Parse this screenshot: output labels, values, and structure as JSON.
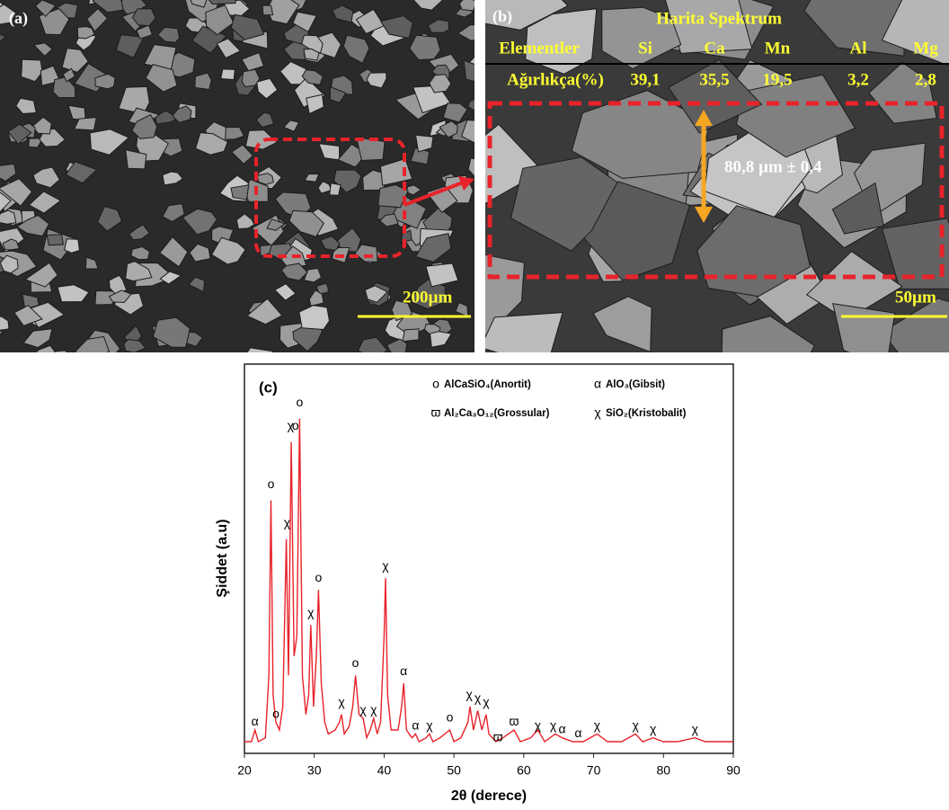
{
  "panels": {
    "a": {
      "label": "(a)",
      "scale_bar": "200µm"
    },
    "b": {
      "label": "(b)",
      "table": {
        "title": "Harita Spektrum",
        "header": [
          "Elementler",
          "Si",
          "Ca",
          "Mn",
          "Al",
          "Mg"
        ],
        "rows": [
          [
            "Ağırlıkça(%)",
            "39,1",
            "35,5",
            "19,5",
            "3,2",
            "2,8"
          ]
        ]
      },
      "measurement": "80,8 µm ± 0,4",
      "scale_bar": "50µm"
    }
  },
  "chart_data": {
    "type": "line",
    "label": "(c)",
    "xlabel": "2θ (derece)",
    "ylabel": "Şiddet (a.u)",
    "color": "#e8232a",
    "x": [
      20,
      21,
      21.5,
      22,
      23,
      23.5,
      23.8,
      24.1,
      24.5,
      25,
      25.5,
      26,
      26.3,
      26.7,
      27.1,
      27.5,
      27.9,
      28.3,
      28.8,
      29.2,
      29.5,
      29.9,
      30.3,
      30.6,
      31,
      31.5,
      32,
      33,
      33.6,
      33.9,
      34.3,
      35,
      35.5,
      35.9,
      36.4,
      37,
      37.5,
      38,
      38.5,
      39,
      39.5,
      40,
      40.2,
      40.5,
      41,
      42,
      42.5,
      42.8,
      43.2,
      44,
      44.5,
      45,
      46,
      46.5,
      47,
      48,
      49.4,
      50,
      51,
      52,
      52.3,
      52.8,
      53.4,
      54,
      54.6,
      55,
      56,
      57,
      58.6,
      59.5,
      61,
      62,
      63,
      64.5,
      65.5,
      67,
      68.5,
      70.5,
      72,
      74,
      76,
      77,
      78.5,
      80,
      82,
      84.5,
      86,
      88,
      90
    ],
    "values": [
      3,
      3,
      6,
      3,
      4,
      20,
      65,
      15,
      8,
      6,
      12,
      55,
      20,
      80,
      25,
      30,
      86,
      20,
      10,
      15,
      33,
      12,
      25,
      42,
      18,
      8,
      5,
      6,
      8,
      10,
      5,
      7,
      12,
      20,
      10,
      9,
      4,
      6,
      9,
      5,
      8,
      30,
      45,
      15,
      6,
      6,
      12,
      18,
      6,
      4,
      5,
      3,
      4,
      5,
      3,
      4,
      6,
      3,
      4,
      8,
      12,
      6,
      11,
      6,
      10,
      5,
      3,
      4,
      6,
      3,
      4,
      6,
      3,
      5,
      4,
      3,
      3,
      5,
      3,
      3,
      5,
      3,
      4,
      3,
      3,
      4,
      3,
      3,
      3
    ],
    "xlim": [
      20,
      90
    ],
    "xticks": [
      20,
      30,
      40,
      50,
      60,
      70,
      80,
      90
    ],
    "ylim": [
      0,
      100
    ],
    "legend": [
      {
        "symbol": "o",
        "label": "AlCaSiO₄(Anortit)"
      },
      {
        "symbol": "α",
        "label": "AlO₃(Gibsit)"
      },
      {
        "symbol": "ϖ",
        "label": "Al₂Ca₃O₁₂(Grossular)"
      },
      {
        "symbol": "χ",
        "label": "SiO₂(Kristobalit)"
      }
    ],
    "annotations": [
      {
        "text": "α",
        "x": 21.5,
        "y": 8
      },
      {
        "text": "o",
        "x": 24.5,
        "y": 10
      },
      {
        "text": "o",
        "x": 23.8,
        "y": 69
      },
      {
        "text": "χ",
        "x": 26.1,
        "y": 59
      },
      {
        "text": "χ",
        "x": 26.6,
        "y": 84
      },
      {
        "text": "o",
        "x": 27.3,
        "y": 84
      },
      {
        "text": "o",
        "x": 27.9,
        "y": 90
      },
      {
        "text": "χ",
        "x": 29.5,
        "y": 36
      },
      {
        "text": "o",
        "x": 30.6,
        "y": 45
      },
      {
        "text": "χ",
        "x": 33.9,
        "y": 13
      },
      {
        "text": "o",
        "x": 35.9,
        "y": 23
      },
      {
        "text": "χ",
        "x": 37,
        "y": 11
      },
      {
        "text": "χ",
        "x": 38.5,
        "y": 11
      },
      {
        "text": "χ",
        "x": 40.2,
        "y": 48
      },
      {
        "text": "α",
        "x": 42.8,
        "y": 21
      },
      {
        "text": "α",
        "x": 44.5,
        "y": 7
      },
      {
        "text": "χ",
        "x": 46.5,
        "y": 7
      },
      {
        "text": "o",
        "x": 49.4,
        "y": 9
      },
      {
        "text": "χ",
        "x": 52.2,
        "y": 15
      },
      {
        "text": "χ",
        "x": 53.4,
        "y": 14
      },
      {
        "text": "χ",
        "x": 54.6,
        "y": 13
      },
      {
        "text": "ϖ",
        "x": 56.3,
        "y": 4
      },
      {
        "text": "ϖ",
        "x": 58.6,
        "y": 8
      },
      {
        "text": "χ",
        "x": 62,
        "y": 7
      },
      {
        "text": "χ",
        "x": 64.2,
        "y": 7
      },
      {
        "text": "α",
        "x": 65.5,
        "y": 6
      },
      {
        "text": "α",
        "x": 67.8,
        "y": 5
      },
      {
        "text": "χ",
        "x": 70.5,
        "y": 7
      },
      {
        "text": "χ",
        "x": 76,
        "y": 7
      },
      {
        "text": "χ",
        "x": 78.5,
        "y": 6
      },
      {
        "text": "χ",
        "x": 84.5,
        "y": 6
      }
    ]
  }
}
